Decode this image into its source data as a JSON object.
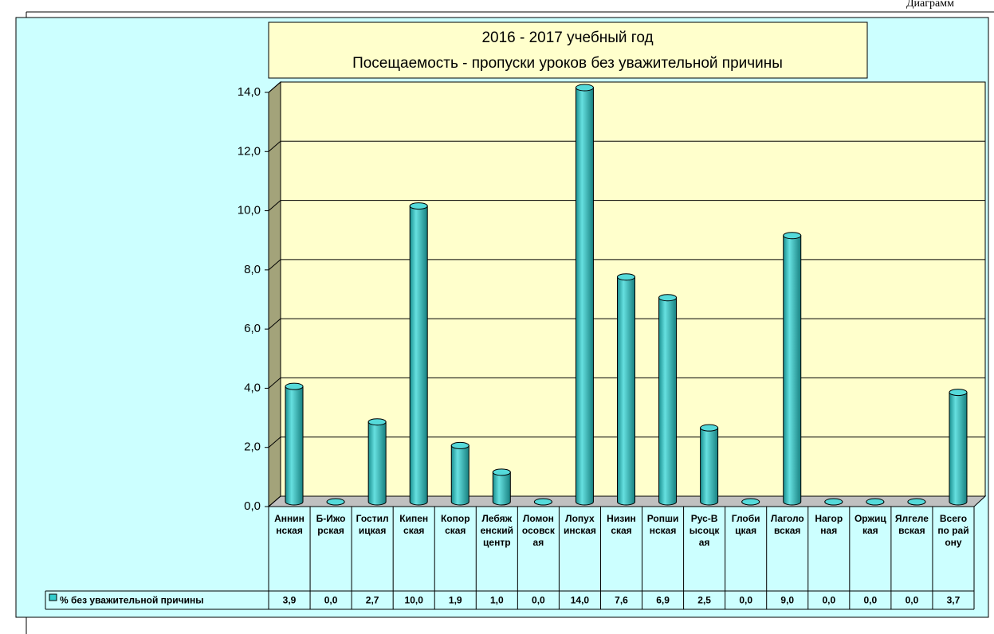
{
  "header": {
    "caption": "Диаграмм"
  },
  "chart_data": {
    "type": "bar",
    "title": "2016 - 2017 учебный год",
    "subtitle": "Посещаемость - пропуски уроков без уважительной причины",
    "categories": [
      "Анниннская",
      "Б-Ижорская",
      "Гостилицкая",
      "Кипенская",
      "Копорская",
      "Лебяженский центр",
      "Ломоносовская",
      "Лопухинская",
      "Низинская",
      "Ропшинская",
      "Рус-Высоцкая",
      "Глобицкая",
      "Лаголовская",
      "Нагорная",
      "Оржицкая",
      "Ялгелевская",
      "Всего по району"
    ],
    "series": [
      {
        "name": "% без уважительной причины",
        "color": "#33cccc",
        "values": [
          3.9,
          0.0,
          2.7,
          10.0,
          1.9,
          1.0,
          0.0,
          14.0,
          7.6,
          6.9,
          2.5,
          0.0,
          9.0,
          0.0,
          0.0,
          0.0,
          3.7
        ],
        "value_labels": [
          "3,9",
          "0,0",
          "2,7",
          "10,0",
          "1,9",
          "1,0",
          "0,0",
          "14,0",
          "7,6",
          "6,9",
          "2,5",
          "0,0",
          "9,0",
          "0,0",
          "0,0",
          "0,0",
          "3,7"
        ]
      }
    ],
    "ylim": [
      0,
      14
    ],
    "yticks": [
      {
        "value": 0,
        "label": "0,0"
      },
      {
        "value": 2,
        "label": "2,0"
      },
      {
        "value": 4,
        "label": "4,0"
      },
      {
        "value": 6,
        "label": "6,0"
      },
      {
        "value": 8,
        "label": "8,0"
      },
      {
        "value": 10,
        "label": "10,0"
      },
      {
        "value": 12,
        "label": "12,0"
      },
      {
        "value": 14,
        "label": "14,0"
      }
    ],
    "grid": true
  }
}
